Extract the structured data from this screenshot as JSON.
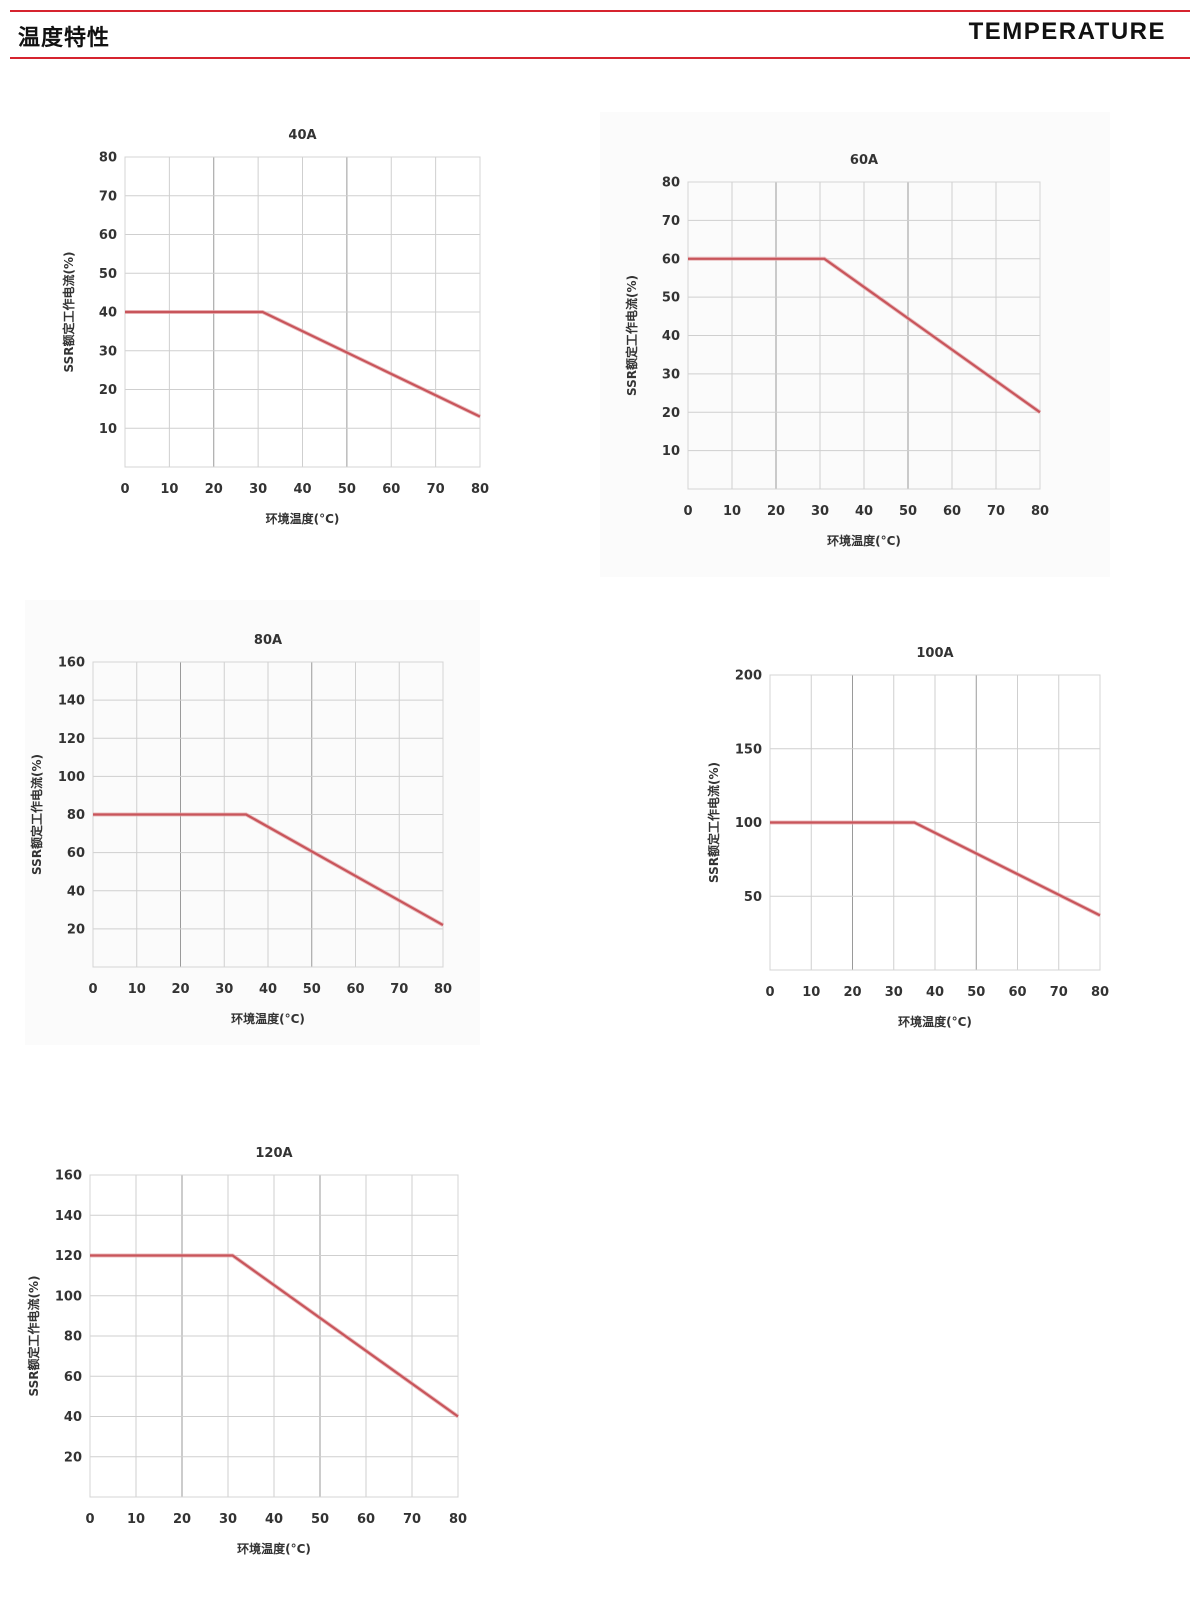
{
  "header": {
    "title_cn": "温度特性",
    "title_en": "TEMPERATURE",
    "accent_color": "#d6242f"
  },
  "chart_data": [
    {
      "type": "line",
      "title": "40A",
      "xlabel": "环境温度(°C)",
      "ylabel": "SSR额定工作电流(%)",
      "x_ticks": [
        0,
        10,
        20,
        30,
        40,
        50,
        60,
        70,
        80
      ],
      "y_ticks": [
        10,
        20,
        30,
        40,
        50,
        60,
        70,
        80
      ],
      "xlim": [
        0,
        80
      ],
      "ylim": [
        0,
        80
      ],
      "grid": true,
      "series": [
        {
          "x": [
            0,
            31,
            80
          ],
          "y": [
            40,
            40,
            13
          ]
        }
      ],
      "line_color": "#c8555b"
    },
    {
      "type": "line",
      "title": "60A",
      "xlabel": "环境温度(°C)",
      "ylabel": "SSR额定工作电流(%)",
      "x_ticks": [
        0,
        10,
        20,
        30,
        40,
        50,
        60,
        70,
        80
      ],
      "y_ticks": [
        10,
        20,
        30,
        40,
        50,
        60,
        70,
        80
      ],
      "xlim": [
        0,
        80
      ],
      "ylim": [
        0,
        80
      ],
      "grid": true,
      "series": [
        {
          "x": [
            0,
            31,
            80
          ],
          "y": [
            60,
            60,
            20
          ]
        }
      ],
      "line_color": "#c8555b"
    },
    {
      "type": "line",
      "title": "80A",
      "xlabel": "环境温度(°C)",
      "ylabel": "SSR额定工作电流(%)",
      "x_ticks": [
        0,
        10,
        20,
        30,
        40,
        50,
        60,
        70,
        80
      ],
      "y_ticks": [
        20,
        40,
        60,
        80,
        100,
        120,
        140,
        160
      ],
      "xlim": [
        0,
        80
      ],
      "ylim": [
        0,
        160
      ],
      "grid": true,
      "series": [
        {
          "x": [
            0,
            35,
            80
          ],
          "y": [
            80,
            80,
            22
          ]
        }
      ],
      "line_color": "#c8555b"
    },
    {
      "type": "line",
      "title": "100A",
      "xlabel": "环境温度(°C)",
      "ylabel": "SSR额定工作电流(%)",
      "x_ticks": [
        0,
        10,
        20,
        30,
        40,
        50,
        60,
        70,
        80
      ],
      "y_ticks": [
        50,
        100,
        150,
        200
      ],
      "xlim": [
        0,
        80
      ],
      "ylim": [
        0,
        200
      ],
      "grid": true,
      "series": [
        {
          "x": [
            0,
            35,
            80
          ],
          "y": [
            100,
            100,
            37
          ]
        }
      ],
      "line_color": "#c8555b"
    },
    {
      "type": "line",
      "title": "120A",
      "xlabel": "环境温度(°C)",
      "ylabel": "SSR额定工作电流(%)",
      "x_ticks": [
        0,
        10,
        20,
        30,
        40,
        50,
        60,
        70,
        80
      ],
      "y_ticks": [
        20,
        40,
        60,
        80,
        100,
        120,
        140,
        160
      ],
      "xlim": [
        0,
        80
      ],
      "ylim": [
        0,
        160
      ],
      "grid": true,
      "series": [
        {
          "x": [
            0,
            31,
            80
          ],
          "y": [
            120,
            120,
            40
          ]
        }
      ],
      "line_color": "#c8555b"
    }
  ]
}
